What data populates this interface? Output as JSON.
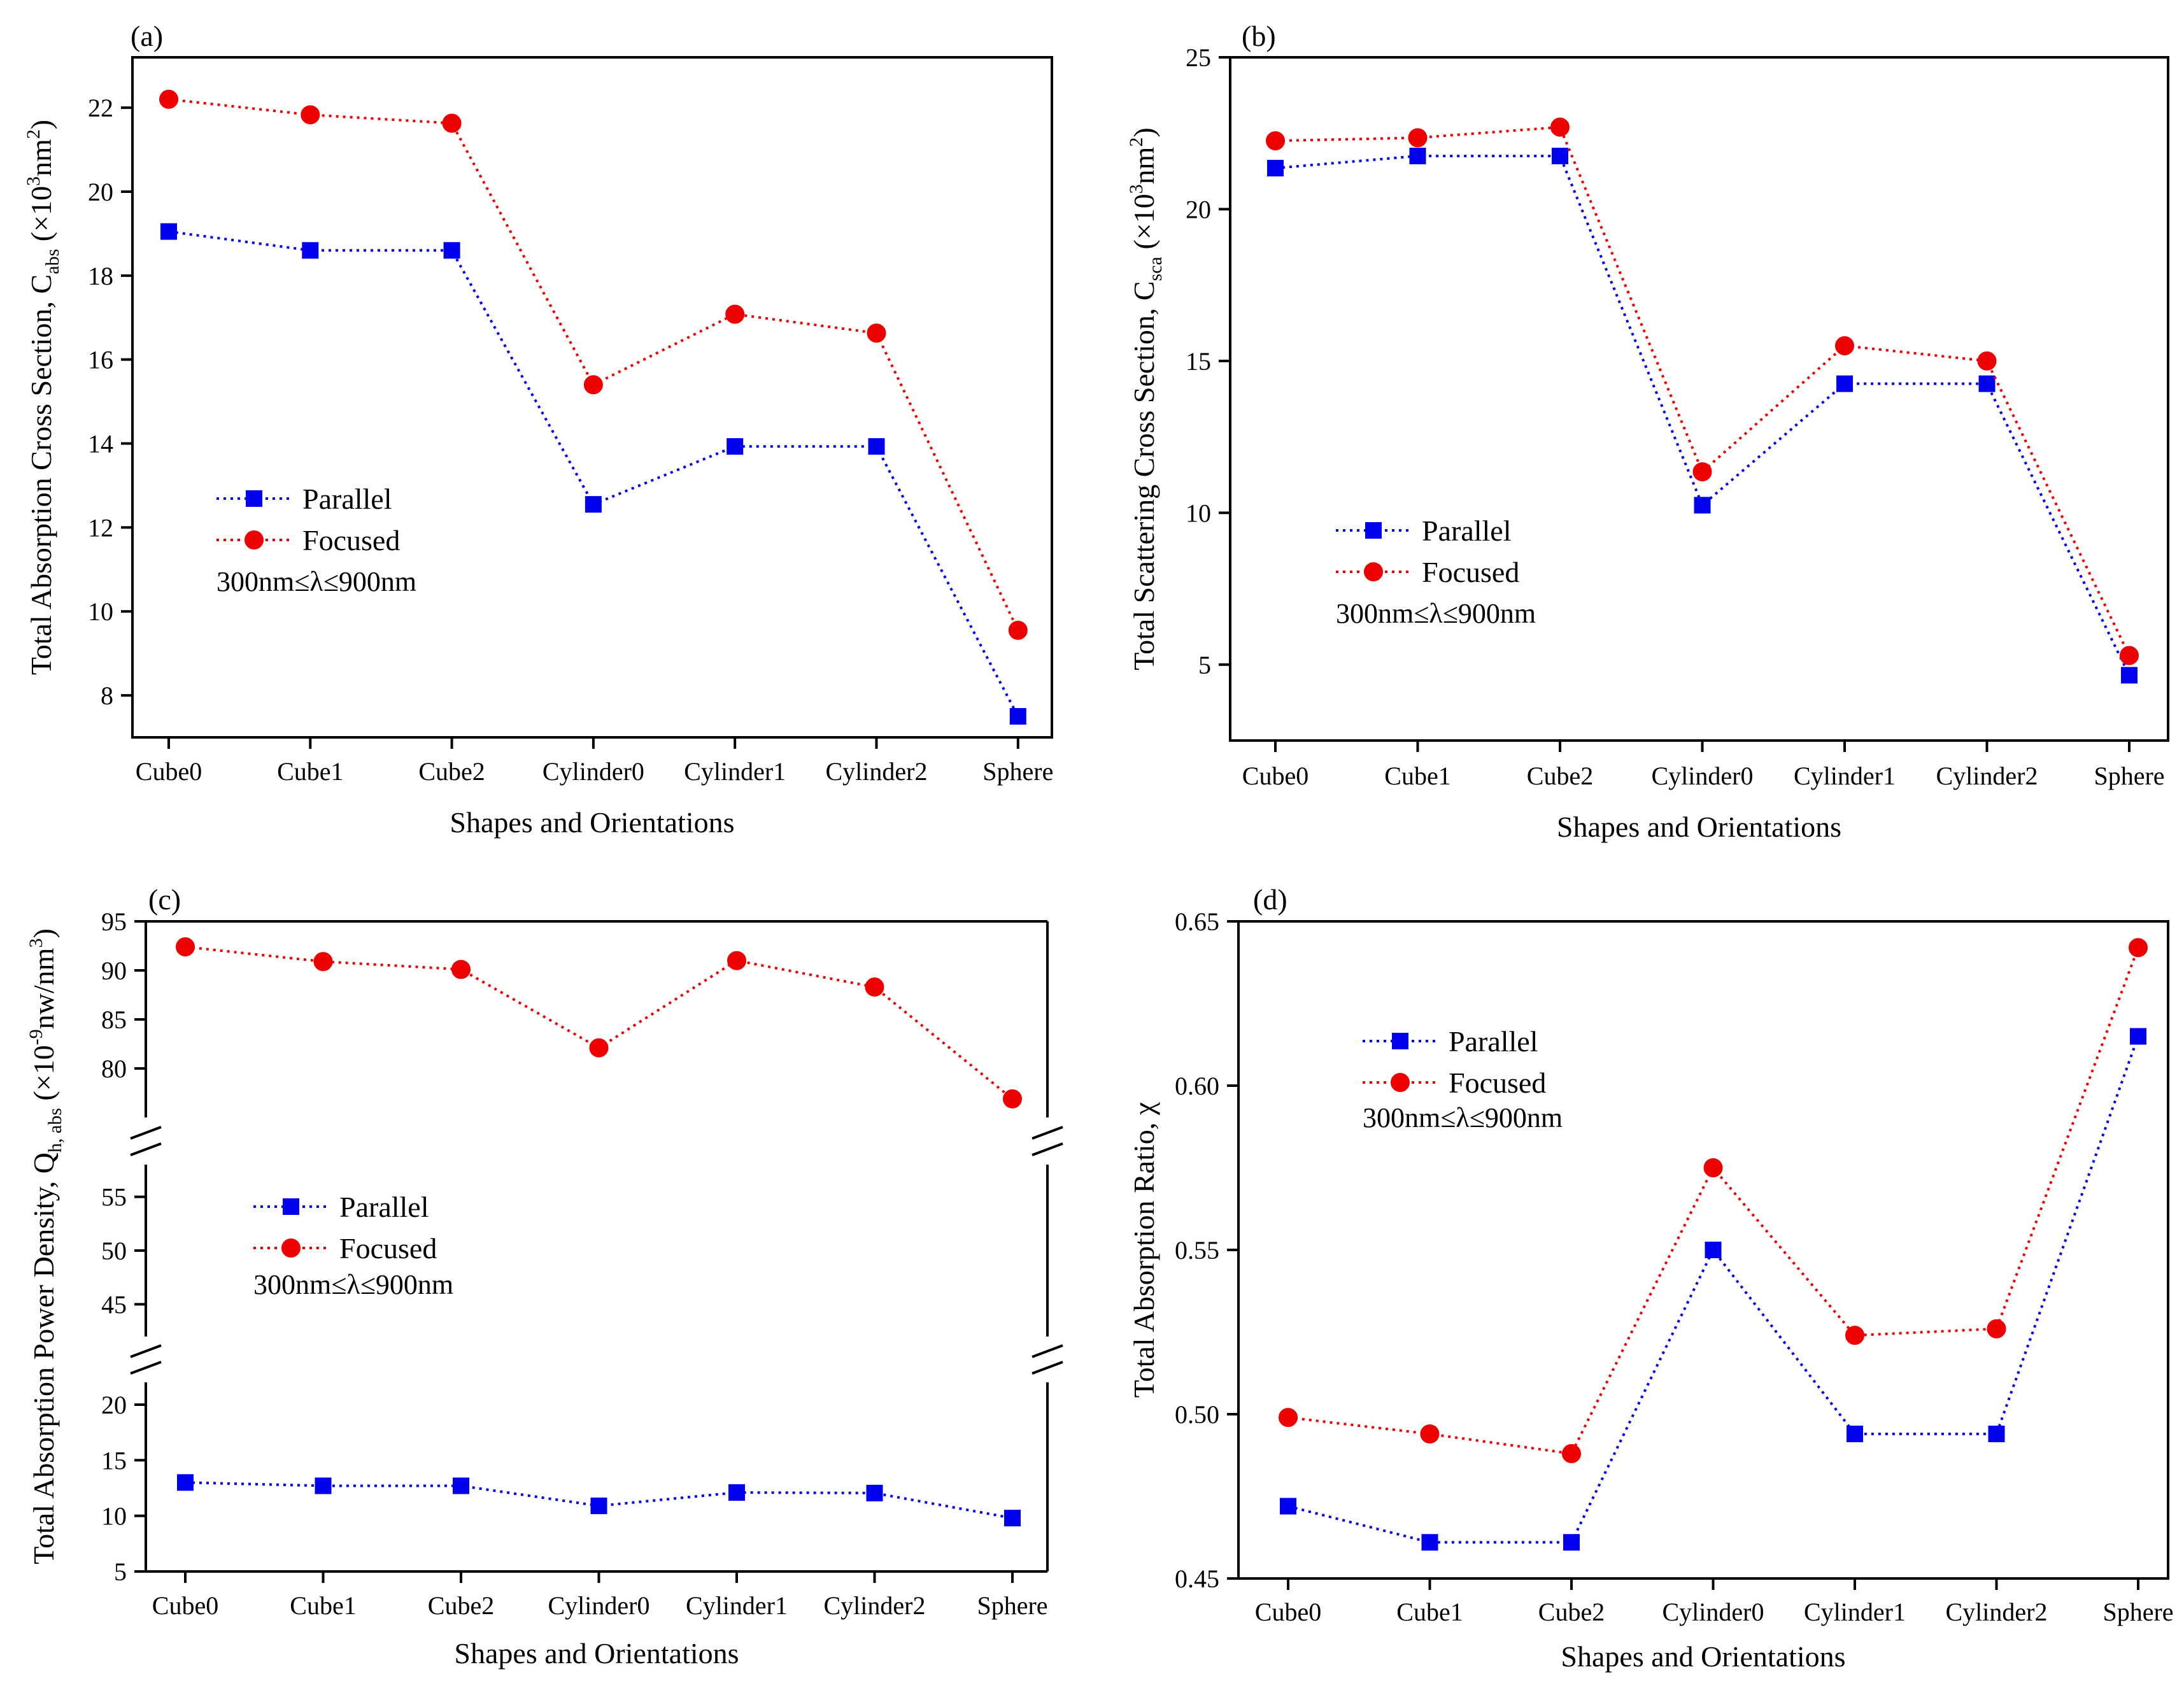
{
  "figure": {
    "colors": {
      "parallel": "#0000ee",
      "focused": "#ee0000",
      "axis": "#000000"
    },
    "panels": [
      {
        "tag": "(a)",
        "xlabel": "Shapes and Orientations",
        "ylabel_main": "Total Absorption Cross Section, C",
        "ylabel_sub": "abs",
        "ylabel_unit": "(×10",
        "ylabel_sup": "3",
        "ylabel_unit2": "nm",
        "ylabel_sup2": "2",
        "ylabel_close": ")",
        "legend": [
          "Parallel",
          "Focused"
        ],
        "note": "300nm≤λ≤900nm"
      },
      {
        "tag": "(b)",
        "xlabel": "Shapes and Orientations",
        "ylabel_main": "Total Scattering Cross Section, C",
        "ylabel_sub": "sca",
        "ylabel_unit": "(×10",
        "ylabel_sup": "3",
        "ylabel_unit2": "nm",
        "ylabel_sup2": "2",
        "ylabel_close": ")",
        "legend": [
          "Parallel",
          "Focused"
        ],
        "note": "300nm≤λ≤900nm"
      },
      {
        "tag": "(c)",
        "xlabel": "Shapes and Orientations",
        "ylabel_main": "Total Absorption Power Density, Q",
        "ylabel_sub": "h, abs",
        "ylabel_unit": "(×10",
        "ylabel_sup": "-9",
        "ylabel_unit2": "nw/nm",
        "ylabel_sup2": "3",
        "ylabel_close": ")",
        "legend": [
          "Parallel",
          "Focused"
        ],
        "note": "300nm≤λ≤900nm"
      },
      {
        "tag": "(d)",
        "xlabel": "Shapes and Orientations",
        "ylabel_main": "Total Absorption Ratio, χ",
        "ylabel_sub": "",
        "ylabel_unit": "",
        "ylabel_sup": "",
        "ylabel_unit2": "",
        "ylabel_sup2": "",
        "ylabel_close": "",
        "legend": [
          "Parallel",
          "Focused"
        ],
        "note": "300nm≤λ≤900nm"
      }
    ]
  },
  "chart_data": [
    {
      "id": "a",
      "type": "line",
      "title": "(a)",
      "categories": [
        "Cube0",
        "Cube1",
        "Cube2",
        "Cylinder0",
        "Cylinder1",
        "Cylinder2",
        "Sphere"
      ],
      "series": [
        {
          "name": "Parallel",
          "marker": "square",
          "values": [
            19.05,
            18.6,
            18.6,
            12.55,
            13.93,
            13.93,
            7.5
          ]
        },
        {
          "name": "Focused",
          "marker": "circle",
          "values": [
            22.2,
            21.83,
            21.63,
            15.4,
            17.08,
            16.63,
            9.55
          ]
        }
      ],
      "xlabel": "Shapes and Orientations",
      "ylabel": "Total Absorption Cross Section, C_abs (×10^3 nm^2)",
      "ylim": [
        7,
        23.2
      ],
      "yticks": [
        8,
        10,
        12,
        14,
        16,
        18,
        20,
        22
      ]
    },
    {
      "id": "b",
      "type": "line",
      "title": "(b)",
      "categories": [
        "Cube0",
        "Cube1",
        "Cube2",
        "Cylinder0",
        "Cylinder1",
        "Cylinder2",
        "Sphere"
      ],
      "series": [
        {
          "name": "Parallel",
          "marker": "square",
          "values": [
            21.35,
            21.75,
            21.75,
            10.25,
            14.25,
            14.25,
            4.65
          ]
        },
        {
          "name": "Focused",
          "marker": "circle",
          "values": [
            22.25,
            22.35,
            22.7,
            11.35,
            15.5,
            15.0,
            5.3
          ]
        }
      ],
      "xlabel": "Shapes and Orientations",
      "ylabel": "Total Scattering Cross Section, C_sca (×10^3 nm^2)",
      "ylim": [
        2.5,
        25
      ],
      "yticks": [
        5,
        10,
        15,
        20,
        25
      ]
    },
    {
      "id": "c",
      "type": "line",
      "title": "(c)",
      "categories": [
        "Cube0",
        "Cube1",
        "Cube2",
        "Cylinder0",
        "Cylinder1",
        "Cylinder2",
        "Sphere"
      ],
      "series": [
        {
          "name": "Parallel",
          "marker": "square",
          "values": [
            13.0,
            12.7,
            12.7,
            10.9,
            12.1,
            12.05,
            9.8
          ]
        },
        {
          "name": "Focused",
          "marker": "circle",
          "values": [
            92.4,
            90.9,
            90.1,
            82.1,
            91.0,
            88.3,
            76.9
          ]
        }
      ],
      "xlabel": "Shapes and Orientations",
      "ylabel": "Total Absorption Power Density, Q_h,abs (×10^-9 nw/nm^3)",
      "broken_axis": [
        [
          5,
          22
        ],
        [
          42,
          58
        ],
        [
          75,
          95
        ]
      ],
      "yticks": [
        5,
        10,
        15,
        20,
        45,
        50,
        55,
        80,
        85,
        90,
        95
      ]
    },
    {
      "id": "d",
      "type": "line",
      "title": "(d)",
      "categories": [
        "Cube0",
        "Cube1",
        "Cube2",
        "Cylinder0",
        "Cylinder1",
        "Cylinder2",
        "Sphere"
      ],
      "series": [
        {
          "name": "Parallel",
          "marker": "square",
          "values": [
            0.472,
            0.461,
            0.461,
            0.55,
            0.494,
            0.494,
            0.615
          ]
        },
        {
          "name": "Focused",
          "marker": "circle",
          "values": [
            0.499,
            0.494,
            0.488,
            0.575,
            0.524,
            0.526,
            0.642
          ]
        }
      ],
      "xlabel": "Shapes and Orientations",
      "ylabel": "Total Absorption Ratio, χ",
      "ylim": [
        0.45,
        0.65
      ],
      "yticks": [
        0.45,
        0.5,
        0.55,
        0.6,
        0.65
      ]
    }
  ]
}
